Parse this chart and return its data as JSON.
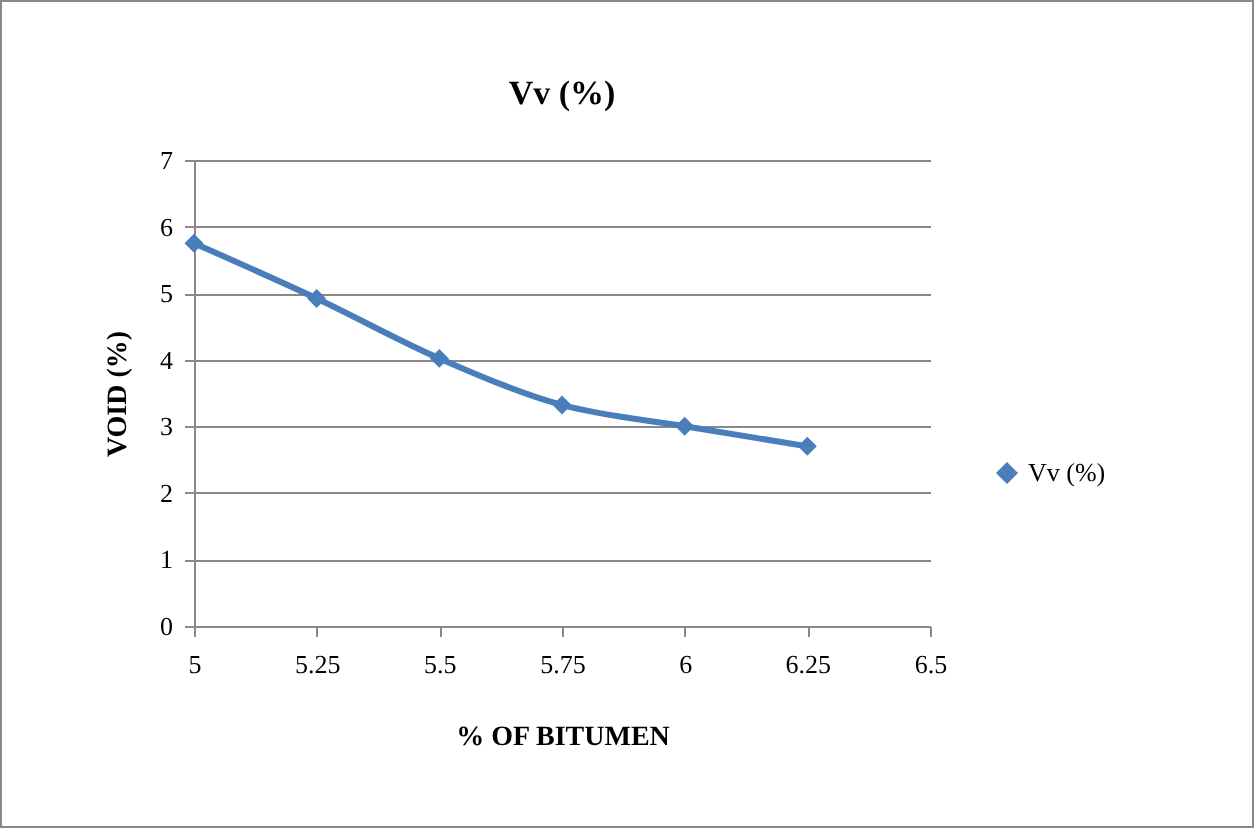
{
  "chart_data": {
    "type": "line",
    "title": "Vv (%)",
    "xlabel": "% OF BITUMEN",
    "ylabel": "VOID (%)",
    "x": [
      5,
      5.25,
      5.5,
      5.75,
      6,
      6.25
    ],
    "series": [
      {
        "name": "Vv (%)",
        "color": "#4a7ebb",
        "values": [
          5.75,
          4.92,
          4.02,
          3.32,
          3.0,
          2.7
        ]
      }
    ],
    "xlim": [
      5,
      6.5
    ],
    "xticks": [
      5,
      5.25,
      5.5,
      5.75,
      6,
      6.25,
      6.5
    ],
    "ylim": [
      0,
      7
    ],
    "yticks": [
      0,
      1,
      2,
      3,
      4,
      5,
      6,
      7
    ],
    "grid": "y",
    "legend": "right",
    "marker": "diamond",
    "line_style": "solid"
  }
}
